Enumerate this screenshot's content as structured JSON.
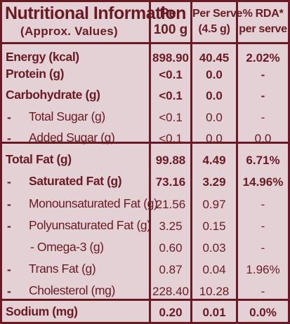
{
  "header": {
    "title": "Nutritional Information",
    "subtitle": "(Approx. Values)",
    "col_per100_line1": "Per",
    "col_per100_line2": "100 g",
    "col_serve_line1": "Per Serve",
    "col_serve_line2": "(4.5 g)",
    "col_rda_line1": "% RDA*",
    "col_rda_line2": "per serve"
  },
  "rows": [
    {
      "dash": "",
      "label": "Energy (kcal)",
      "per100": "898.90",
      "serve": "40.45",
      "rda": "2.02%"
    },
    {
      "dash": "",
      "label": "Protein (g)",
      "per100": "<0.1",
      "serve": "0.0",
      "rda": "-"
    },
    {
      "dash": "",
      "label": "Carbohydrate (g)",
      "per100": "<0.1",
      "serve": "0.0",
      "rda": "-"
    },
    {
      "dash": "-",
      "label": "Total Sugar (g)",
      "per100": "<0.1",
      "serve": "0.0",
      "rda": "-"
    },
    {
      "dash": "-",
      "label": "Added Sugar (g)",
      "per100": "<0.1",
      "serve": "0.0",
      "rda": "0.0"
    },
    {
      "dash": "",
      "label": "Total Fat (g)",
      "per100": "99.88",
      "serve": "4.49",
      "rda": "6.71%"
    },
    {
      "dash": "-",
      "label": "Saturated Fat (g)",
      "per100": "73.16",
      "serve": "3.29",
      "rda": "14.96%"
    },
    {
      "dash": "-",
      "label": "Monounsaturated Fat (g)",
      "per100": "21.56",
      "serve": "0.97",
      "rda": "-"
    },
    {
      "dash": "-",
      "label": "Polyunsaturated Fat (g)",
      "per100": "3.25",
      "serve": "0.15",
      "rda": "-"
    },
    {
      "dash": "",
      "label": "- Omega-3 (g)",
      "per100": "0.60",
      "serve": "0.03",
      "rda": "-"
    },
    {
      "dash": "-",
      "label": "Trans Fat (g)",
      "per100": "0.87",
      "serve": "0.04",
      "rda": "1.96%"
    },
    {
      "dash": "-",
      "label": "Cholesterol (mg)",
      "per100": "228.40",
      "serve": "10.28",
      "rda": "-"
    },
    {
      "dash": "",
      "label": "Sodium (mg)",
      "per100": "0.20",
      "serve": "0.01",
      "rda": "0.0%"
    }
  ]
}
